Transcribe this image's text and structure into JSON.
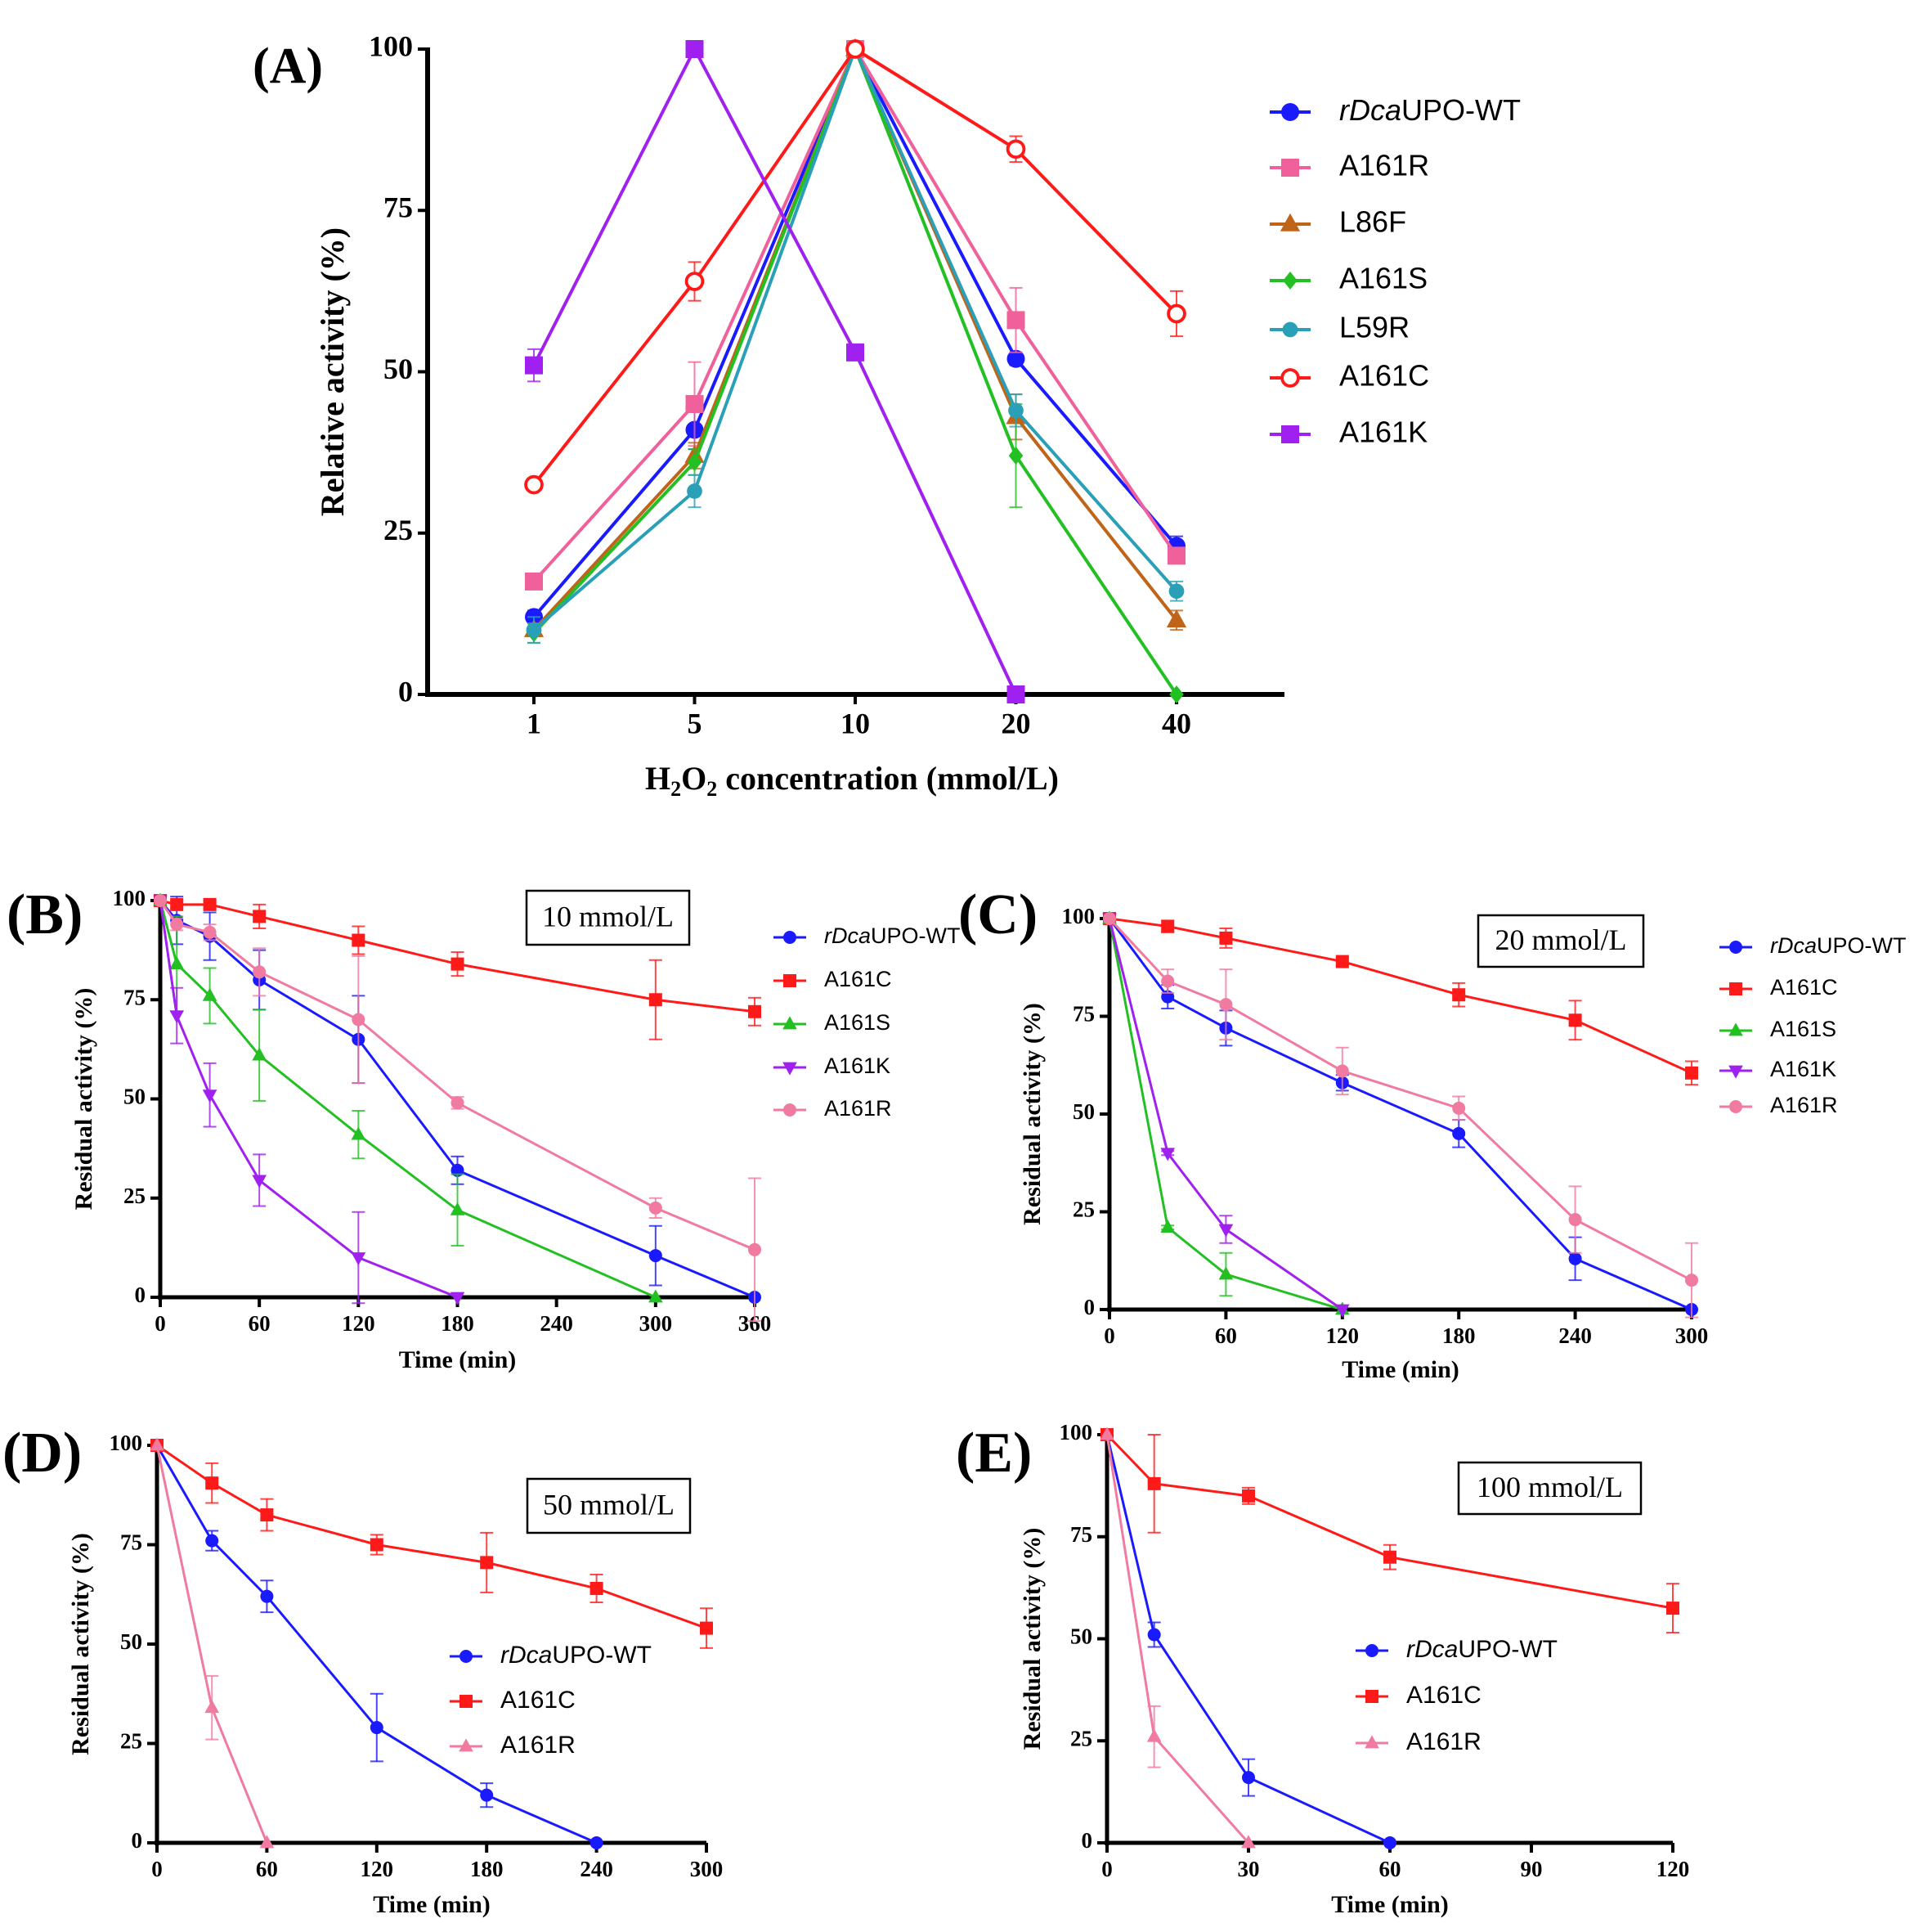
{
  "chart_data": [
    {
      "panel_label": "(A)",
      "type": "line",
      "xlabel": "H2O2 concentration (mmol/L)",
      "ylabel": "Relative activity (%)",
      "x_scale": "categorical",
      "categories": [
        "1",
        "5",
        "10",
        "20",
        "40"
      ],
      "ylim": [
        0,
        100
      ],
      "yticks": [
        0,
        25,
        50,
        75,
        100
      ],
      "grid": false,
      "legend_placement": "right",
      "series": [
        {
          "name": "rDcaUPO-WT",
          "color": "#1a1aff",
          "marker": "circle",
          "values": [
            12,
            41,
            100,
            52,
            23
          ],
          "error": [
            1,
            3,
            0,
            1,
            1.5
          ]
        },
        {
          "name": "A161R",
          "color": "#f0609a",
          "marker": "square",
          "values": [
            17.5,
            45,
            100,
            58,
            21.5
          ],
          "error": [
            1,
            6.5,
            0,
            5,
            1
          ]
        },
        {
          "name": "L86F",
          "color": "#c0641a",
          "marker": "triangle",
          "values": [
            10,
            37,
            100,
            43,
            11.5
          ],
          "error": [
            1,
            2,
            0,
            3.5,
            1.5
          ]
        },
        {
          "name": "A161S",
          "color": "#22c022",
          "marker": "diamond",
          "values": [
            9.5,
            36,
            100,
            37,
            0
          ],
          "error": [
            1.5,
            2,
            0,
            8,
            0
          ]
        },
        {
          "name": "L59R",
          "color": "#2aa0b8",
          "marker": "hexagon",
          "values": [
            10,
            31.5,
            100,
            44,
            16
          ],
          "error": [
            2,
            2.5,
            0,
            2.5,
            1.5
          ]
        },
        {
          "name": "A161C",
          "color": "#ff1a1a",
          "marker": "open-circle",
          "values": [
            32.5,
            64,
            100,
            84.5,
            59
          ],
          "error": [
            0.5,
            3,
            0,
            2,
            3.5
          ]
        },
        {
          "name": "A161K",
          "color": "#a020f0",
          "marker": "square",
          "values": [
            51,
            100,
            53,
            0,
            null
          ],
          "error": [
            2.5,
            0,
            0,
            0,
            null
          ]
        }
      ]
    },
    {
      "panel_label": "(B)",
      "type": "line",
      "annotation": "10 mmol/L",
      "xlabel": "Time (min)",
      "ylabel": "Residual activity (%)",
      "xlim": [
        0,
        360
      ],
      "xticks": [
        0,
        60,
        120,
        180,
        240,
        300,
        360
      ],
      "ylim": [
        0,
        100
      ],
      "yticks": [
        0,
        25,
        50,
        75,
        100
      ],
      "grid": false,
      "legend_placement": "right",
      "series": [
        {
          "name": "rDcaUPO-WT",
          "color": "#1a1aff",
          "marker": "circle",
          "x": [
            0,
            10,
            30,
            60,
            120,
            180,
            300,
            360
          ],
          "values": [
            100,
            95,
            91,
            80,
            65,
            32,
            10.5,
            0
          ],
          "error": [
            0,
            6,
            6,
            7.5,
            11,
            3.5,
            7.5,
            0
          ]
        },
        {
          "name": "A161C",
          "color": "#ff1a1a",
          "marker": "square",
          "x": [
            0,
            10,
            30,
            60,
            120,
            180,
            300,
            360
          ],
          "values": [
            100,
            99,
            99,
            96,
            90,
            84,
            75,
            72
          ],
          "error": [
            0,
            1,
            1,
            3,
            3.5,
            3,
            10,
            3.5
          ]
        },
        {
          "name": "A161S",
          "color": "#22c022",
          "marker": "triangle",
          "x": [
            0,
            10,
            30,
            60,
            120,
            180,
            300
          ],
          "values": [
            100,
            84,
            76,
            61,
            41,
            22,
            0
          ],
          "error": [
            0,
            12,
            7,
            11.5,
            6,
            9,
            0
          ]
        },
        {
          "name": "A161K",
          "color": "#a020f0",
          "marker": "inv-triangle",
          "x": [
            0,
            10,
            30,
            60,
            120,
            180
          ],
          "values": [
            100,
            71,
            51,
            29.5,
            10,
            0
          ],
          "error": [
            0,
            7,
            8,
            6.5,
            11.5,
            0
          ]
        },
        {
          "name": "A161R",
          "color": "#f07aa0",
          "marker": "circle",
          "x": [
            0,
            10,
            30,
            60,
            120,
            180,
            300,
            360
          ],
          "values": [
            100,
            94,
            92,
            82,
            70,
            49,
            22.5,
            12
          ],
          "error": [
            0,
            1.5,
            2,
            6,
            16,
            1.5,
            2.5,
            18
          ]
        }
      ]
    },
    {
      "panel_label": "(C)",
      "type": "line",
      "annotation": "20 mmol/L",
      "xlabel": "Time (min)",
      "ylabel": "Residual activity (%)",
      "xlim": [
        0,
        300
      ],
      "xticks": [
        0,
        60,
        120,
        180,
        240,
        300
      ],
      "ylim": [
        0,
        100
      ],
      "yticks": [
        0,
        25,
        50,
        75,
        100
      ],
      "grid": false,
      "legend_placement": "right",
      "series": [
        {
          "name": "rDcaUPO-WT",
          "color": "#1a1aff",
          "marker": "circle",
          "x": [
            0,
            30,
            60,
            120,
            180,
            240,
            300
          ],
          "values": [
            100,
            80,
            72,
            58,
            45,
            13,
            0
          ],
          "error": [
            0,
            3,
            4.5,
            2,
            3.5,
            5.5,
            0
          ]
        },
        {
          "name": "A161C",
          "color": "#ff1a1a",
          "marker": "square",
          "x": [
            0,
            30,
            60,
            120,
            180,
            240,
            300
          ],
          "values": [
            100,
            98,
            95,
            89,
            80.5,
            74,
            60.5
          ],
          "error": [
            0,
            1.5,
            2.5,
            1,
            3,
            5,
            3
          ]
        },
        {
          "name": "A161S",
          "color": "#22c022",
          "marker": "triangle",
          "x": [
            0,
            30,
            60,
            120
          ],
          "values": [
            100,
            21,
            9,
            0
          ],
          "error": [
            0,
            0.5,
            5.5,
            0
          ]
        },
        {
          "name": "A161K",
          "color": "#a020f0",
          "marker": "inv-triangle",
          "x": [
            0,
            30,
            60,
            120
          ],
          "values": [
            100,
            40,
            20.5,
            0
          ],
          "error": [
            0,
            0.5,
            3.5,
            0
          ]
        },
        {
          "name": "A161R",
          "color": "#f07aa0",
          "marker": "circle",
          "x": [
            0,
            30,
            60,
            120,
            180,
            240,
            300
          ],
          "values": [
            100,
            84,
            78,
            61,
            51.5,
            23,
            7.5
          ],
          "error": [
            0,
            3,
            9,
            6,
            3,
            8.5,
            9.5
          ]
        }
      ]
    },
    {
      "panel_label": "(D)",
      "type": "line",
      "annotation": "50 mmol/L",
      "xlabel": "Time (min)",
      "ylabel": "Residual activity (%)",
      "xlim": [
        0,
        300
      ],
      "xticks": [
        0,
        60,
        120,
        180,
        240,
        300
      ],
      "ylim": [
        0,
        100
      ],
      "yticks": [
        0,
        25,
        50,
        75,
        100
      ],
      "grid": false,
      "legend_placement": "center",
      "series": [
        {
          "name": "rDcaUPO-WT",
          "color": "#1a1aff",
          "marker": "circle",
          "x": [
            0,
            30,
            60,
            120,
            180,
            240
          ],
          "values": [
            100,
            76,
            62,
            29,
            12,
            0
          ],
          "error": [
            0,
            2.5,
            4,
            8.5,
            3,
            0
          ]
        },
        {
          "name": "A161C",
          "color": "#ff1a1a",
          "marker": "square",
          "x": [
            0,
            30,
            60,
            120,
            180,
            240,
            300
          ],
          "values": [
            100,
            90.5,
            82.5,
            75,
            70.5,
            64,
            54
          ],
          "error": [
            0,
            5,
            4,
            2.5,
            7.5,
            3.5,
            5
          ]
        },
        {
          "name": "A161R",
          "color": "#f07aa0",
          "marker": "triangle",
          "x": [
            0,
            30,
            60
          ],
          "values": [
            100,
            34,
            0
          ],
          "error": [
            0,
            8,
            0
          ]
        }
      ]
    },
    {
      "panel_label": "(E)",
      "type": "line",
      "annotation": "100 mmol/L",
      "xlabel": "Time (min)",
      "ylabel": "Residual activity (%)",
      "xlim": [
        0,
        120
      ],
      "xticks": [
        0,
        30,
        60,
        90,
        120
      ],
      "ylim": [
        0,
        100
      ],
      "yticks": [
        0,
        25,
        50,
        75,
        100
      ],
      "grid": false,
      "legend_placement": "center",
      "series": [
        {
          "name": "rDcaUPO-WT",
          "color": "#1a1aff",
          "marker": "circle",
          "x": [
            0,
            10,
            30,
            60
          ],
          "values": [
            100,
            51,
            16,
            0
          ],
          "error": [
            0,
            3,
            4.5,
            0
          ]
        },
        {
          "name": "A161C",
          "color": "#ff1a1a",
          "marker": "square",
          "x": [
            0,
            10,
            30,
            60,
            120
          ],
          "values": [
            100,
            88,
            85,
            70,
            57.5
          ],
          "error": [
            0,
            12,
            2,
            3,
            6
          ]
        },
        {
          "name": "A161R",
          "color": "#f07aa0",
          "marker": "triangle",
          "x": [
            0,
            10,
            30
          ],
          "values": [
            100,
            26,
            0
          ],
          "error": [
            0,
            7.5,
            0
          ]
        }
      ]
    }
  ]
}
